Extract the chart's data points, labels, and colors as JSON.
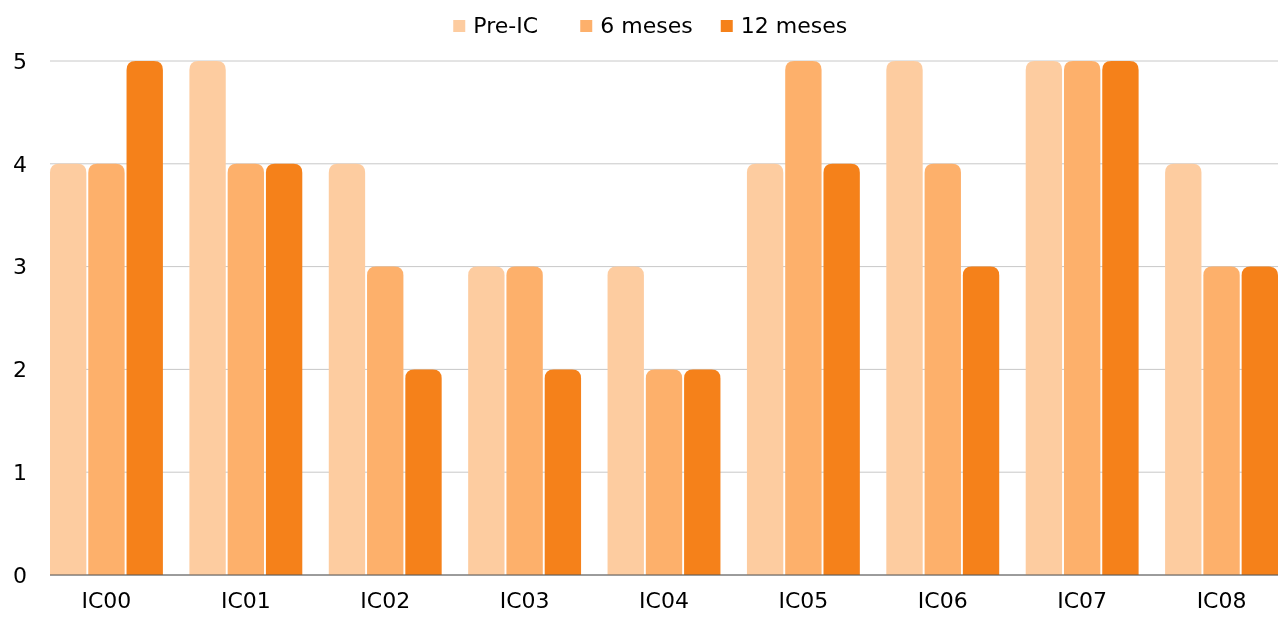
{
  "chart_data": {
    "type": "bar",
    "categories": [
      "IC00",
      "IC01",
      "IC02",
      "IC03",
      "IC04",
      "IC05",
      "IC06",
      "IC07",
      "IC08"
    ],
    "series": [
      {
        "name": "Pre-IC",
        "color": "#fdcca0",
        "values": [
          4,
          5,
          4,
          3,
          3,
          4,
          5,
          5,
          4
        ]
      },
      {
        "name": "6 meses",
        "color": "#fdb06b",
        "values": [
          4,
          4,
          3,
          3,
          2,
          5,
          4,
          5,
          3
        ]
      },
      {
        "name": "12 meses",
        "color": "#f5811a",
        "values": [
          5,
          4,
          2,
          2,
          2,
          4,
          3,
          5,
          3
        ]
      }
    ],
    "ylim": [
      0,
      5
    ],
    "yticks": [
      0,
      1,
      2,
      3,
      4,
      5
    ],
    "grid": "y",
    "legend": "top"
  }
}
